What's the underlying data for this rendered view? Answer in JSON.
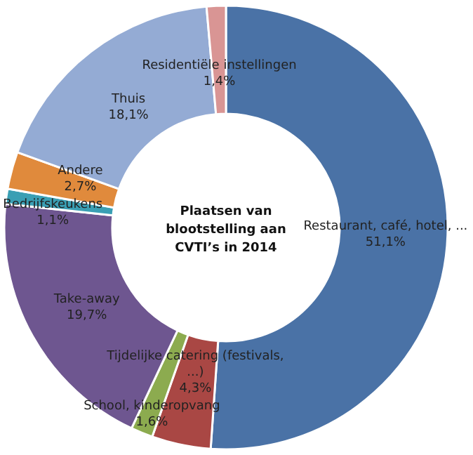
{
  "chart_data": {
    "type": "donut",
    "title": "Plaatsen van blootstelling aan CVTI’s in 2014",
    "categories": [
      "Restaurant, café, hotel, ...",
      "Tijdelijke catering (festivals, ...)",
      "School, kinderopvang",
      "Take-away",
      "Bedrijfskeukens",
      "Andere",
      "Thuis",
      "Residentiële instellingen"
    ],
    "values": [
      51.1,
      4.3,
      1.6,
      19.7,
      1.1,
      2.7,
      18.1,
      1.4
    ],
    "value_labels": [
      "51,1%",
      "4,3%",
      "1,6%",
      "19,7%",
      "1,1%",
      "2,7%",
      "18,1%",
      "1,4%"
    ],
    "colors": [
      "#4a72a6",
      "#a94744",
      "#8cab4f",
      "#6e5690",
      "#3a9fb4",
      "#e08a3c",
      "#94abd4",
      "#d99594"
    ]
  }
}
